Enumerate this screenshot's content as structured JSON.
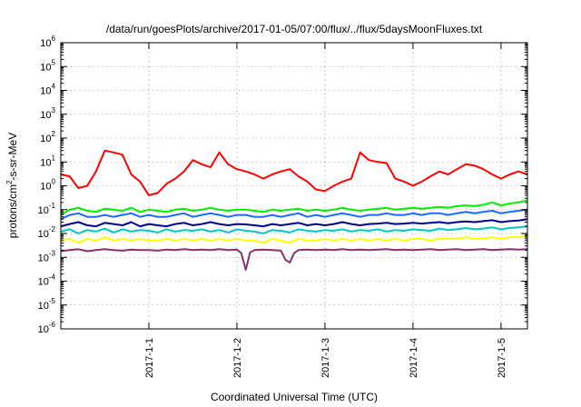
{
  "chart_data": {
    "type": "line",
    "title": "/data/run/goesPlots/archive/2017-01-05/07:00/flux/../flux/5daysMoonFluxes.txt",
    "xlabel": "Coordinated Universal Time (UTC)",
    "ylabel_base": "protons/cm",
    "ylabel_sup": "2",
    "ylabel_rest": "-s-sr-MeV",
    "y_scale": "log",
    "ylim": [
      1e-06,
      1000000.0
    ],
    "y_tick_exponents": [
      -6,
      -5,
      -4,
      -3,
      -2,
      -1,
      0,
      1,
      2,
      3,
      4,
      5,
      6
    ],
    "y_tick_base": "10",
    "x_unit": "days since 2016-12-31 00:00 UTC",
    "xlim": [
      0.0,
      5.3
    ],
    "x_tick_values": [
      1,
      2,
      3,
      4,
      5
    ],
    "x_tick_labels": [
      "2017-1-1",
      "2017-1-2",
      "2017-1-3",
      "2017-1-4",
      "2017-1-5"
    ],
    "grid": true,
    "series": [
      {
        "color": "#ff0000",
        "x": [
          0.0,
          0.1,
          0.2,
          0.3,
          0.4,
          0.5,
          0.6,
          0.7,
          0.8,
          0.9,
          1.0,
          1.1,
          1.2,
          1.3,
          1.4,
          1.5,
          1.6,
          1.7,
          1.8,
          1.9,
          2.0,
          2.1,
          2.2,
          2.3,
          2.4,
          2.5,
          2.6,
          2.7,
          2.8,
          2.9,
          3.0,
          3.1,
          3.2,
          3.3,
          3.4,
          3.5,
          3.6,
          3.7,
          3.8,
          3.9,
          4.0,
          4.1,
          4.2,
          4.3,
          4.4,
          4.5,
          4.6,
          4.7,
          4.8,
          4.9,
          5.0,
          5.1,
          5.2,
          5.3
        ],
        "values": [
          3,
          2.5,
          0.8,
          1.0,
          4,
          30,
          25,
          20,
          3,
          1.5,
          0.4,
          0.5,
          1.2,
          2,
          4,
          12,
          8,
          6,
          25,
          8,
          5,
          4,
          3,
          2,
          3,
          4,
          5,
          2.5,
          1.5,
          0.7,
          0.6,
          1,
          1.5,
          2,
          25,
          12,
          10,
          9,
          2,
          1.5,
          1,
          1.5,
          2.5,
          4,
          3,
          5,
          8,
          7,
          5,
          3,
          2,
          3,
          4,
          3
        ]
      },
      {
        "color": "#00ee00",
        "x": [
          0.0,
          0.1,
          0.2,
          0.3,
          0.4,
          0.5,
          0.6,
          0.7,
          0.8,
          0.9,
          1.0,
          1.1,
          1.2,
          1.3,
          1.4,
          1.5,
          1.6,
          1.7,
          1.8,
          1.9,
          2.0,
          2.1,
          2.2,
          2.3,
          2.4,
          2.5,
          2.6,
          2.7,
          2.8,
          2.9,
          3.0,
          3.1,
          3.2,
          3.3,
          3.4,
          3.5,
          3.6,
          3.7,
          3.8,
          3.9,
          4.0,
          4.1,
          4.2,
          4.3,
          4.4,
          4.5,
          4.6,
          4.7,
          4.8,
          4.9,
          5.0,
          5.1,
          5.2,
          5.3
        ],
        "values": [
          0.06,
          0.1,
          0.12,
          0.09,
          0.08,
          0.11,
          0.1,
          0.09,
          0.12,
          0.08,
          0.1,
          0.09,
          0.08,
          0.1,
          0.11,
          0.09,
          0.1,
          0.12,
          0.1,
          0.09,
          0.1,
          0.1,
          0.09,
          0.08,
          0.1,
          0.09,
          0.1,
          0.11,
          0.09,
          0.1,
          0.09,
          0.1,
          0.12,
          0.1,
          0.09,
          0.1,
          0.11,
          0.12,
          0.1,
          0.11,
          0.12,
          0.11,
          0.12,
          0.13,
          0.12,
          0.14,
          0.15,
          0.14,
          0.16,
          0.2,
          0.15,
          0.18,
          0.2,
          0.25
        ]
      },
      {
        "color": "#1b6bff",
        "x": [
          0.0,
          0.1,
          0.2,
          0.3,
          0.4,
          0.5,
          0.6,
          0.7,
          0.8,
          0.9,
          1.0,
          1.1,
          1.2,
          1.3,
          1.4,
          1.5,
          1.6,
          1.7,
          1.8,
          1.9,
          2.0,
          2.1,
          2.2,
          2.3,
          2.4,
          2.5,
          2.6,
          2.7,
          2.8,
          2.9,
          3.0,
          3.1,
          3.2,
          3.3,
          3.4,
          3.5,
          3.6,
          3.7,
          3.8,
          3.9,
          4.0,
          4.1,
          4.2,
          4.3,
          4.4,
          4.5,
          4.6,
          4.7,
          4.8,
          4.9,
          5.0,
          5.1,
          5.2,
          5.3
        ],
        "values": [
          0.04,
          0.06,
          0.07,
          0.05,
          0.05,
          0.06,
          0.05,
          0.06,
          0.07,
          0.05,
          0.06,
          0.05,
          0.05,
          0.06,
          0.07,
          0.05,
          0.06,
          0.07,
          0.06,
          0.05,
          0.06,
          0.06,
          0.05,
          0.05,
          0.06,
          0.05,
          0.06,
          0.07,
          0.05,
          0.06,
          0.05,
          0.06,
          0.07,
          0.06,
          0.05,
          0.06,
          0.06,
          0.07,
          0.06,
          0.06,
          0.07,
          0.06,
          0.07,
          0.07,
          0.06,
          0.07,
          0.08,
          0.07,
          0.08,
          0.09,
          0.07,
          0.08,
          0.09,
          0.1
        ]
      },
      {
        "color": "#00c8c8",
        "x": [
          0.0,
          0.1,
          0.2,
          0.3,
          0.4,
          0.5,
          0.6,
          0.7,
          0.8,
          0.9,
          1.0,
          1.1,
          1.2,
          1.3,
          1.4,
          1.5,
          1.6,
          1.7,
          1.8,
          1.9,
          2.0,
          2.1,
          2.2,
          2.3,
          2.4,
          2.5,
          2.6,
          2.7,
          2.8,
          2.9,
          3.0,
          3.1,
          3.2,
          3.3,
          3.4,
          3.5,
          3.6,
          3.7,
          3.8,
          3.9,
          4.0,
          4.1,
          4.2,
          4.3,
          4.4,
          4.5,
          4.6,
          4.7,
          4.8,
          4.9,
          5.0,
          5.1,
          5.2,
          5.3
        ],
        "values": [
          0.012,
          0.015,
          0.01,
          0.014,
          0.012,
          0.016,
          0.011,
          0.015,
          0.012,
          0.014,
          0.013,
          0.011,
          0.015,
          0.012,
          0.014,
          0.013,
          0.015,
          0.012,
          0.014,
          0.011,
          0.015,
          0.013,
          0.012,
          0.01,
          0.014,
          0.013,
          0.011,
          0.015,
          0.013,
          0.012,
          0.014,
          0.013,
          0.015,
          0.012,
          0.014,
          0.013,
          0.015,
          0.012,
          0.014,
          0.013,
          0.015,
          0.014,
          0.013,
          0.016,
          0.014,
          0.015,
          0.017,
          0.015,
          0.016,
          0.018,
          0.015,
          0.017,
          0.018,
          0.02
        ]
      },
      {
        "color": "#000090",
        "x": [
          0.0,
          0.1,
          0.2,
          0.3,
          0.4,
          0.5,
          0.6,
          0.7,
          0.8,
          0.9,
          1.0,
          1.1,
          1.2,
          1.3,
          1.4,
          1.5,
          1.6,
          1.7,
          1.8,
          1.9,
          2.0,
          2.1,
          2.2,
          2.3,
          2.4,
          2.5,
          2.6,
          2.7,
          2.8,
          2.9,
          3.0,
          3.1,
          3.2,
          3.3,
          3.4,
          3.5,
          3.6,
          3.7,
          3.8,
          3.9,
          4.0,
          4.1,
          4.2,
          4.3,
          4.4,
          4.5,
          4.6,
          4.7,
          4.8,
          4.9,
          5.0,
          5.1,
          5.2,
          5.3
        ],
        "values": [
          0.02,
          0.025,
          0.03,
          0.022,
          0.02,
          0.028,
          0.025,
          0.022,
          0.03,
          0.02,
          0.025,
          0.022,
          0.02,
          0.025,
          0.028,
          0.022,
          0.025,
          0.03,
          0.025,
          0.022,
          0.025,
          0.024,
          0.022,
          0.02,
          0.025,
          0.022,
          0.025,
          0.028,
          0.022,
          0.025,
          0.022,
          0.025,
          0.03,
          0.025,
          0.022,
          0.025,
          0.026,
          0.028,
          0.025,
          0.026,
          0.028,
          0.026,
          0.028,
          0.03,
          0.027,
          0.03,
          0.032,
          0.03,
          0.033,
          0.036,
          0.03,
          0.033,
          0.035,
          0.04
        ]
      },
      {
        "color": "#ffff00",
        "x": [
          0.0,
          0.1,
          0.2,
          0.3,
          0.4,
          0.5,
          0.6,
          0.7,
          0.8,
          0.9,
          1.0,
          1.1,
          1.2,
          1.3,
          1.4,
          1.5,
          1.6,
          1.7,
          1.8,
          1.9,
          2.0,
          2.1,
          2.2,
          2.3,
          2.4,
          2.5,
          2.6,
          2.7,
          2.8,
          2.9,
          3.0,
          3.1,
          3.2,
          3.3,
          3.4,
          3.5,
          3.6,
          3.7,
          3.8,
          3.9,
          4.0,
          4.1,
          4.2,
          4.3,
          4.4,
          4.5,
          4.6,
          4.7,
          4.8,
          4.9,
          5.0,
          5.1,
          5.2,
          5.3
        ],
        "values": [
          0.005,
          0.006,
          0.004,
          0.006,
          0.005,
          0.007,
          0.005,
          0.006,
          0.005,
          0.006,
          0.005,
          0.005,
          0.006,
          0.005,
          0.006,
          0.005,
          0.006,
          0.005,
          0.006,
          0.005,
          0.006,
          0.005,
          0.005,
          0.004,
          0.006,
          0.005,
          0.004,
          0.006,
          0.005,
          0.005,
          0.006,
          0.005,
          0.006,
          0.005,
          0.006,
          0.005,
          0.006,
          0.005,
          0.006,
          0.005,
          0.006,
          0.006,
          0.005,
          0.006,
          0.006,
          0.006,
          0.007,
          0.006,
          0.006,
          0.007,
          0.006,
          0.007,
          0.007,
          0.008
        ]
      },
      {
        "color": "#8b2d6e",
        "x": [
          0.0,
          0.1,
          0.2,
          0.3,
          0.4,
          0.5,
          0.6,
          0.7,
          0.8,
          0.9,
          1.0,
          1.1,
          1.2,
          1.3,
          1.4,
          1.5,
          1.6,
          1.7,
          1.8,
          1.9,
          2.0,
          2.05,
          2.1,
          2.15,
          2.2,
          2.3,
          2.4,
          2.5,
          2.55,
          2.6,
          2.65,
          2.7,
          2.8,
          2.9,
          3.0,
          3.1,
          3.2,
          3.3,
          3.4,
          3.5,
          3.6,
          3.7,
          3.8,
          3.9,
          4.0,
          4.1,
          4.2,
          4.3,
          4.4,
          4.5,
          4.6,
          4.7,
          4.8,
          4.9,
          5.0,
          5.1,
          5.2,
          5.3
        ],
        "values": [
          0.0018,
          0.002,
          0.0022,
          0.0018,
          0.002,
          0.0022,
          0.002,
          0.0019,
          0.0021,
          0.002,
          0.002,
          0.0019,
          0.0021,
          0.002,
          0.0022,
          0.002,
          0.0021,
          0.002,
          0.0022,
          0.002,
          0.0021,
          0.0015,
          0.0003,
          0.0016,
          0.002,
          0.0021,
          0.002,
          0.0019,
          0.0008,
          0.0006,
          0.0015,
          0.002,
          0.0021,
          0.002,
          0.0021,
          0.002,
          0.0022,
          0.002,
          0.0021,
          0.002,
          0.0021,
          0.0022,
          0.002,
          0.0021,
          0.002,
          0.0021,
          0.0022,
          0.002,
          0.0021,
          0.0022,
          0.002,
          0.0021,
          0.0022,
          0.002,
          0.0021,
          0.0022,
          0.0021,
          0.0022
        ]
      }
    ]
  }
}
